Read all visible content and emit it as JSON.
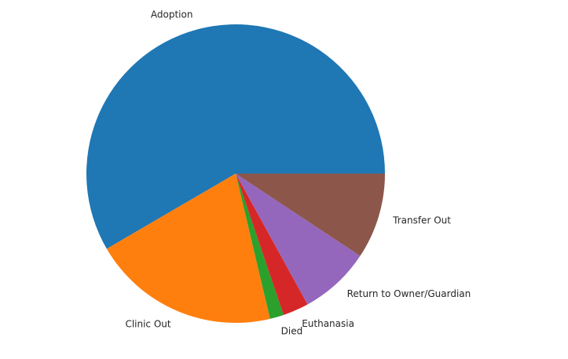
{
  "chart_data": {
    "type": "pie",
    "title": "",
    "slices": [
      {
        "label": "Adoption",
        "value": 58.4,
        "color": "#1f77b4"
      },
      {
        "label": "Clinic Out",
        "value": 20.3,
        "color": "#ff7f0e"
      },
      {
        "label": "Died",
        "value": 1.5,
        "color": "#2ca02c"
      },
      {
        "label": "Euthanasia",
        "value": 2.8,
        "color": "#d62728"
      },
      {
        "label": "Return to Owner/Guardian",
        "value": 7.7,
        "color": "#9467bd"
      },
      {
        "label": "Transfer Out",
        "value": 9.3,
        "color": "#8c564b"
      }
    ],
    "start_angle_deg": 0,
    "direction": "counterclockwise",
    "legend": "none"
  }
}
